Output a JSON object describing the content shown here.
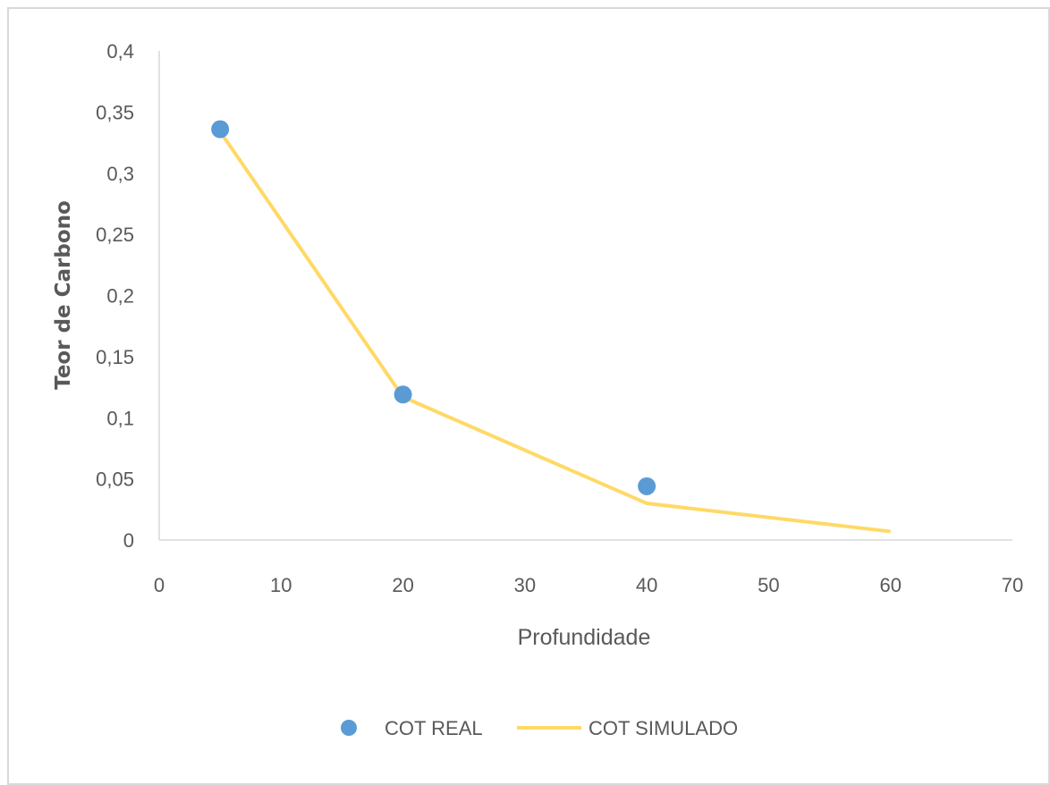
{
  "chart_data": {
    "type": "scatter",
    "title": "",
    "xlabel": "Profundidade",
    "ylabel": "Teor de Carbono",
    "xlim": [
      0,
      70
    ],
    "ylim": [
      0,
      0.4
    ],
    "x_ticks": [
      "0",
      "10",
      "20",
      "30",
      "40",
      "50",
      "60",
      "70"
    ],
    "y_ticks": [
      "0",
      "0,05",
      "0,1",
      "0,15",
      "0,2",
      "0,25",
      "0,3",
      "0,35",
      "0,4"
    ],
    "grid": false,
    "legend_position": "bottom",
    "series": [
      {
        "name": "COT REAL",
        "kind": "scatter",
        "color": "#5b9bd5",
        "points": [
          {
            "x": 5,
            "y": 0.336
          },
          {
            "x": 20,
            "y": 0.119
          },
          {
            "x": 40,
            "y": 0.044
          }
        ]
      },
      {
        "name": "COT SIMULADO",
        "kind": "line",
        "color": "#ffd966",
        "points": [
          {
            "x": 5,
            "y": 0.334
          },
          {
            "x": 20,
            "y": 0.117
          },
          {
            "x": 40,
            "y": 0.03
          },
          {
            "x": 60,
            "y": 0.007
          }
        ]
      }
    ]
  }
}
